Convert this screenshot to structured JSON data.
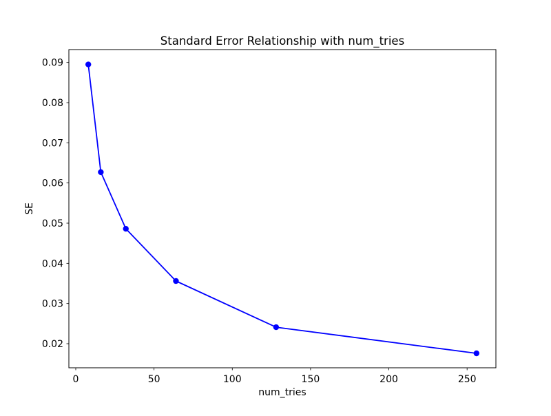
{
  "figure": {
    "background": "#ffffff",
    "spine_color": "#000000",
    "tick_color": "#000000"
  },
  "chart_data": {
    "type": "line",
    "title": "Standard Error Relationship with num_tries",
    "xlabel": "num_tries",
    "ylabel": "SE",
    "x": [
      8,
      16,
      32,
      64,
      128,
      256
    ],
    "series": [
      {
        "name": "SE",
        "values": [
          0.0895,
          0.0627,
          0.0486,
          0.0356,
          0.0241,
          0.0176
        ],
        "color": "#0000ff",
        "marker": "circle",
        "line_width": 1.8,
        "marker_radius": 4.2
      }
    ],
    "xlim": [
      -4.4,
      268.4
    ],
    "ylim": [
      0.014,
      0.0932
    ],
    "xticks": [
      0,
      50,
      100,
      150,
      200,
      250
    ],
    "yticks": [
      0.02,
      0.03,
      0.04,
      0.05,
      0.06,
      0.07,
      0.08,
      0.09
    ],
    "ytick_decimals": 2,
    "grid": false,
    "legend": "none"
  }
}
